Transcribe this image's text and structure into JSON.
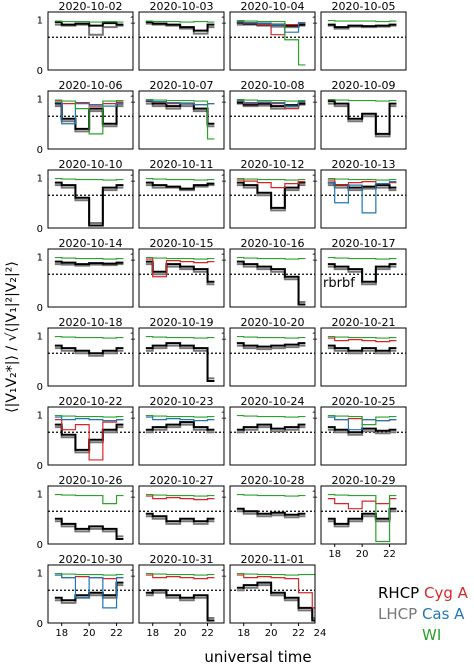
{
  "chart_data": {
    "type": "line",
    "ylabel": "⟨|V₁V₂*|⟩ / √⟨|V₁|²|V₂|²⟩",
    "xlabel": "universal time",
    "xlim": [
      17,
      23.2
    ],
    "ylim": [
      0,
      1.15
    ],
    "yticks": [
      "0",
      "1"
    ],
    "xticks": [
      "18",
      "20",
      "22"
    ],
    "reference_line": 0.65,
    "colors": {
      "black": "#000000",
      "gray": "#777777",
      "red": "#d62728",
      "blue": "#1f77b4",
      "green": "#2ca02c"
    },
    "legend": {
      "rhcp": "RHCP",
      "lhcp": "LHCP",
      "cyg": "Cyg A",
      "cas": "Cas A",
      "wi": "WI"
    },
    "annotation": "rbrbf",
    "panels": [
      {
        "date": "2020-10-02",
        "x": [
          17.5,
          18,
          19,
          20,
          21,
          22
        ],
        "black": [
          0.95,
          0.9,
          0.92,
          0.88,
          0.93,
          0.9
        ],
        "gray": [
          0.9,
          0.88,
          0.9,
          0.7,
          0.85,
          0.88
        ],
        "green": [
          0.97,
          0.96,
          0.96,
          0.95,
          0.96,
          0.95
        ]
      },
      {
        "date": "2020-10-03",
        "x": [
          17.5,
          18,
          19,
          20,
          21,
          22
        ],
        "black": [
          0.95,
          0.92,
          0.9,
          0.85,
          0.78,
          0.9
        ],
        "gray": [
          0.92,
          0.9,
          0.88,
          0.82,
          0.72,
          0.85
        ],
        "green": [
          0.97,
          0.96,
          0.96,
          0.95,
          0.96,
          0.95
        ]
      },
      {
        "date": "2020-10-04",
        "x": [
          17.5,
          18,
          19,
          20,
          21,
          22
        ],
        "black": [
          0.94,
          0.92,
          0.9,
          0.9,
          0.88,
          0.9
        ],
        "gray": [
          0.9,
          0.9,
          0.88,
          0.86,
          0.85,
          0.88
        ],
        "red": [
          0.95,
          0.93,
          0.9,
          0.7,
          0.9,
          0.93
        ],
        "blue": [
          0.96,
          0.94,
          0.93,
          0.9,
          0.75,
          0.94
        ],
        "green": [
          0.98,
          0.97,
          0.96,
          0.96,
          0.6,
          0.1
        ]
      },
      {
        "date": "2020-10-05",
        "x": [
          17.5,
          18,
          19,
          20,
          21,
          22
        ],
        "black": [
          0.9,
          0.85,
          0.88,
          0.87,
          0.88,
          0.9
        ],
        "gray": [
          0.88,
          0.82,
          0.86,
          0.85,
          0.86,
          0.88
        ],
        "green": [
          0.98,
          0.97,
          0.97,
          0.97,
          0.96,
          0.97
        ]
      },
      {
        "date": "2020-10-06",
        "x": [
          17.5,
          18,
          19,
          20,
          21,
          22
        ],
        "black": [
          0.9,
          0.6,
          0.4,
          0.8,
          0.5,
          0.9
        ],
        "gray": [
          0.85,
          0.55,
          0.35,
          0.75,
          0.45,
          0.85
        ],
        "red": [
          0.95,
          0.9,
          0.92,
          0.85,
          0.9,
          0.93
        ],
        "blue": [
          0.92,
          0.5,
          0.9,
          0.88,
          0.85,
          0.9
        ],
        "green": [
          0.97,
          0.95,
          0.8,
          0.3,
          0.95,
          0.96
        ]
      },
      {
        "date": "2020-10-07",
        "x": [
          17.5,
          18,
          19,
          20,
          21,
          22
        ],
        "black": [
          0.95,
          0.9,
          0.85,
          0.9,
          0.8,
          0.5
        ],
        "gray": [
          0.9,
          0.85,
          0.8,
          0.85,
          0.75,
          0.45
        ],
        "red": [
          0.95,
          0.93,
          0.9,
          0.9,
          0.88,
          0.9
        ],
        "blue": [
          0.96,
          0.94,
          0.92,
          0.9,
          0.88,
          0.9
        ],
        "green": [
          0.98,
          0.97,
          0.96,
          0.96,
          0.95,
          0.2
        ]
      },
      {
        "date": "2020-10-08",
        "x": [
          17.5,
          18,
          19,
          20,
          21,
          22
        ],
        "black": [
          0.92,
          0.88,
          0.9,
          0.85,
          0.87,
          0.9
        ],
        "gray": [
          0.9,
          0.85,
          0.86,
          0.8,
          0.84,
          0.88
        ],
        "red": [
          0.95,
          0.9,
          0.92,
          0.9,
          0.8,
          0.93
        ],
        "blue": [
          0.96,
          0.92,
          0.93,
          0.92,
          0.85,
          0.94
        ],
        "green": [
          0.98,
          0.97,
          0.96,
          0.96,
          0.95,
          0.96
        ]
      },
      {
        "date": "2020-10-09",
        "x": [
          17.5,
          18,
          19,
          20,
          21,
          22
        ],
        "black": [
          0.95,
          0.9,
          0.6,
          0.7,
          0.3,
          0.9
        ],
        "gray": [
          0.9,
          0.85,
          0.55,
          0.65,
          0.25,
          0.85
        ],
        "green": [
          0.98,
          0.97,
          0.96,
          0.96,
          0.95,
          0.96
        ]
      },
      {
        "date": "2020-10-10",
        "x": [
          17.5,
          18,
          19,
          20,
          21,
          22
        ],
        "black": [
          0.9,
          0.85,
          0.6,
          0.05,
          0.8,
          0.85
        ],
        "gray": [
          0.85,
          0.8,
          0.55,
          0.1,
          0.75,
          0.8
        ],
        "green": [
          0.98,
          0.97,
          0.96,
          0.96,
          0.95,
          0.96
        ]
      },
      {
        "date": "2020-10-11",
        "x": [
          17.5,
          18,
          19,
          20,
          21,
          22
        ],
        "black": [
          0.9,
          0.85,
          0.82,
          0.78,
          0.85,
          0.88
        ],
        "gray": [
          0.85,
          0.8,
          0.8,
          0.75,
          0.82,
          0.85
        ],
        "green": [
          0.98,
          0.97,
          0.96,
          0.96,
          0.95,
          0.96
        ]
      },
      {
        "date": "2020-10-12",
        "x": [
          17.5,
          18,
          19,
          20,
          21,
          22
        ],
        "black": [
          0.9,
          0.85,
          0.7,
          0.4,
          0.8,
          0.9
        ],
        "gray": [
          0.85,
          0.8,
          0.65,
          0.35,
          0.75,
          0.85
        ],
        "red": [
          0.95,
          0.93,
          0.9,
          0.8,
          0.88,
          0.92
        ],
        "green": [
          0.98,
          0.97,
          0.96,
          0.96,
          0.95,
          0.96
        ]
      },
      {
        "date": "2020-10-13",
        "x": [
          17.5,
          18,
          19,
          20,
          21,
          22
        ],
        "black": [
          0.9,
          0.85,
          0.8,
          0.82,
          0.85,
          0.8
        ],
        "gray": [
          0.85,
          0.8,
          0.75,
          0.78,
          0.8,
          0.75
        ],
        "red": [
          0.95,
          0.85,
          0.9,
          0.92,
          0.88,
          0.9
        ],
        "blue": [
          0.9,
          0.5,
          0.85,
          0.3,
          0.88,
          0.92
        ],
        "green": [
          0.98,
          0.97,
          0.96,
          0.96,
          0.95,
          0.96
        ]
      },
      {
        "date": "2020-10-14",
        "x": [
          17.5,
          18,
          19,
          20,
          21,
          22
        ],
        "black": [
          0.9,
          0.88,
          0.85,
          0.87,
          0.86,
          0.88
        ],
        "gray": [
          0.85,
          0.84,
          0.82,
          0.84,
          0.83,
          0.85
        ],
        "green": [
          0.98,
          0.97,
          0.96,
          0.96,
          0.95,
          0.96
        ]
      },
      {
        "date": "2020-10-15",
        "x": [
          17.5,
          18,
          19,
          20,
          21,
          22
        ],
        "black": [
          0.9,
          0.7,
          0.85,
          0.8,
          0.75,
          0.5
        ],
        "gray": [
          0.85,
          0.65,
          0.8,
          0.75,
          0.7,
          0.45
        ],
        "red": [
          0.95,
          0.6,
          0.92,
          0.9,
          0.88,
          0.9
        ],
        "green": [
          0.98,
          0.97,
          0.96,
          0.96,
          0.95,
          0.96
        ]
      },
      {
        "date": "2020-10-16",
        "x": [
          17.5,
          18,
          19,
          20,
          21,
          22
        ],
        "black": [
          0.9,
          0.85,
          0.8,
          0.75,
          0.6,
          0.05
        ],
        "gray": [
          0.85,
          0.8,
          0.75,
          0.7,
          0.55,
          0.1
        ],
        "green": [
          0.98,
          0.97,
          0.96,
          0.96,
          0.95,
          0.96
        ]
      },
      {
        "date": "2020-10-17",
        "x": [
          17.5,
          18,
          19,
          20,
          21,
          22
        ],
        "black": [
          0.85,
          0.8,
          0.75,
          0.5,
          0.8,
          0.85
        ],
        "gray": [
          0.8,
          0.75,
          0.7,
          0.45,
          0.75,
          0.8
        ],
        "green": [
          0.98,
          0.97,
          0.96,
          0.96,
          0.95,
          0.96
        ]
      },
      {
        "date": "2020-10-18",
        "x": [
          17.5,
          18,
          19,
          20,
          21,
          22
        ],
        "black": [
          0.8,
          0.75,
          0.7,
          0.65,
          0.7,
          0.75
        ],
        "gray": [
          0.75,
          0.7,
          0.65,
          0.6,
          0.65,
          0.7
        ],
        "green": [
          0.98,
          0.97,
          0.96,
          0.96,
          0.95,
          0.96
        ]
      },
      {
        "date": "2020-10-19",
        "x": [
          17.5,
          18,
          19,
          20,
          21,
          22
        ],
        "black": [
          0.75,
          0.8,
          0.85,
          0.8,
          0.75,
          0.1
        ],
        "gray": [
          0.7,
          0.75,
          0.8,
          0.75,
          0.7,
          0.15
        ],
        "green": [
          0.98,
          0.97,
          0.96,
          0.96,
          0.95,
          0.96
        ]
      },
      {
        "date": "2020-10-20",
        "x": [
          17.5,
          18,
          19,
          20,
          21,
          22
        ],
        "black": [
          0.85,
          0.8,
          0.78,
          0.8,
          0.82,
          0.85
        ],
        "gray": [
          0.8,
          0.75,
          0.73,
          0.75,
          0.77,
          0.8
        ],
        "green": [
          0.98,
          0.97,
          0.96,
          0.96,
          0.95,
          0.96
        ]
      },
      {
        "date": "2020-10-21",
        "x": [
          17.5,
          18,
          19,
          20,
          21,
          22
        ],
        "black": [
          0.8,
          0.75,
          0.7,
          0.75,
          0.7,
          0.75
        ],
        "gray": [
          0.75,
          0.7,
          0.65,
          0.7,
          0.65,
          0.7
        ],
        "red": [
          0.95,
          0.9,
          0.92,
          0.9,
          0.88,
          0.9
        ],
        "green": [
          0.98,
          0.97,
          0.96,
          0.96,
          0.95,
          0.96
        ]
      },
      {
        "date": "2020-10-22",
        "x": [
          17.5,
          18,
          19,
          20,
          21,
          22
        ],
        "black": [
          0.8,
          0.6,
          0.3,
          0.5,
          0.7,
          0.8
        ],
        "gray": [
          0.75,
          0.55,
          0.25,
          0.45,
          0.65,
          0.75
        ],
        "red": [
          0.9,
          0.7,
          0.8,
          0.1,
          0.85,
          0.9
        ],
        "blue": [
          0.95,
          0.9,
          0.92,
          0.9,
          0.88,
          0.9
        ],
        "green": [
          0.98,
          0.97,
          0.96,
          0.96,
          0.95,
          0.96
        ]
      },
      {
        "date": "2020-10-23",
        "x": [
          17.5,
          18,
          19,
          20,
          21,
          22
        ],
        "black": [
          0.7,
          0.75,
          0.8,
          0.85,
          0.75,
          0.7
        ],
        "gray": [
          0.65,
          0.7,
          0.75,
          0.8,
          0.7,
          0.65
        ],
        "blue": [
          0.95,
          0.9,
          0.92,
          0.9,
          0.88,
          0.9
        ],
        "green": [
          0.98,
          0.97,
          0.96,
          0.96,
          0.95,
          0.96
        ]
      },
      {
        "date": "2020-10-24",
        "x": [
          17.5,
          18,
          19,
          20,
          21,
          22
        ],
        "black": [
          0.7,
          0.75,
          0.8,
          0.72,
          0.75,
          0.8
        ],
        "gray": [
          0.65,
          0.7,
          0.75,
          0.67,
          0.7,
          0.75
        ],
        "green": [
          0.98,
          0.97,
          0.96,
          0.96,
          0.95,
          0.96
        ]
      },
      {
        "date": "2020-10-25",
        "x": [
          17.5,
          18,
          19,
          20,
          21,
          22
        ],
        "black": [
          0.75,
          0.7,
          0.65,
          0.72,
          0.68,
          0.7
        ],
        "gray": [
          0.7,
          0.65,
          0.6,
          0.67,
          0.63,
          0.65
        ],
        "red": [
          0.95,
          0.9,
          0.92,
          0.9,
          0.88,
          0.9
        ],
        "blue": [
          0.95,
          0.9,
          0.7,
          0.9,
          0.88,
          0.9
        ],
        "green": [
          0.98,
          0.97,
          0.96,
          0.8,
          0.95,
          0.96
        ]
      },
      {
        "date": "2020-10-26",
        "x": [
          17.5,
          18,
          19,
          20,
          21,
          22
        ],
        "black": [
          0.5,
          0.4,
          0.3,
          0.35,
          0.3,
          0.1
        ],
        "gray": [
          0.45,
          0.35,
          0.25,
          0.3,
          0.25,
          0.15
        ],
        "green": [
          0.98,
          0.97,
          0.96,
          0.96,
          0.8,
          0.96
        ]
      },
      {
        "date": "2020-10-27",
        "x": [
          17.5,
          18,
          19,
          20,
          21,
          22
        ],
        "black": [
          0.6,
          0.55,
          0.45,
          0.5,
          0.45,
          0.5
        ],
        "gray": [
          0.55,
          0.5,
          0.4,
          0.45,
          0.4,
          0.45
        ],
        "red": [
          0.95,
          0.9,
          0.92,
          0.9,
          0.88,
          0.9
        ],
        "green": [
          0.98,
          0.97,
          0.96,
          0.96,
          0.95,
          0.96
        ]
      },
      {
        "date": "2020-10-28",
        "x": [
          17.5,
          18,
          19,
          20,
          21,
          22
        ],
        "black": [
          0.7,
          0.65,
          0.6,
          0.62,
          0.58,
          0.6
        ],
        "gray": [
          0.65,
          0.6,
          0.55,
          0.57,
          0.53,
          0.55
        ],
        "green": [
          0.98,
          0.97,
          0.96,
          0.96,
          0.95,
          0.96
        ]
      },
      {
        "date": "2020-10-29",
        "x": [
          17.5,
          18,
          19,
          20,
          21,
          22
        ],
        "black": [
          0.5,
          0.4,
          0.5,
          0.6,
          0.5,
          0.7
        ],
        "gray": [
          0.45,
          0.35,
          0.45,
          0.55,
          0.45,
          0.65
        ],
        "red": [
          0.9,
          0.8,
          0.7,
          0.85,
          0.8,
          0.9
        ],
        "green": [
          0.98,
          0.97,
          0.96,
          0.96,
          0.05,
          0.96
        ]
      },
      {
        "date": "2020-10-30",
        "x": [
          17.5,
          18,
          19,
          20,
          21,
          22
        ],
        "black": [
          0.5,
          0.45,
          0.55,
          0.6,
          0.55,
          0.8
        ],
        "gray": [
          0.45,
          0.4,
          0.5,
          0.55,
          0.5,
          0.75
        ],
        "red": [
          0.95,
          0.9,
          0.92,
          0.9,
          0.88,
          0.9
        ],
        "blue": [
          0.95,
          0.9,
          0.5,
          0.9,
          0.3,
          0.9
        ],
        "green": [
          0.98,
          0.97,
          0.96,
          0.96,
          0.95,
          0.96
        ]
      },
      {
        "date": "2020-10-31",
        "x": [
          17.5,
          18,
          19,
          20,
          21,
          22
        ],
        "black": [
          0.6,
          0.65,
          0.55,
          0.5,
          0.55,
          0.05
        ],
        "gray": [
          0.55,
          0.6,
          0.5,
          0.45,
          0.5,
          0.1
        ],
        "red": [
          0.95,
          0.9,
          0.92,
          0.9,
          0.88,
          0.9
        ],
        "green": [
          0.98,
          0.97,
          0.96,
          0.96,
          0.95,
          0.96
        ]
      },
      {
        "date": "2020-11-01",
        "x": [
          17.5,
          18,
          19,
          20,
          21,
          22,
          23
        ],
        "black": [
          0.7,
          0.75,
          0.8,
          0.6,
          0.5,
          0.3,
          0.05
        ],
        "gray": [
          0.65,
          0.7,
          0.75,
          0.55,
          0.45,
          0.25,
          0.1
        ],
        "red": [
          0.95,
          0.9,
          0.92,
          0.9,
          0.88,
          0.6,
          0.3
        ],
        "green": [
          0.98,
          0.97,
          0.96,
          0.96,
          0.95,
          0.96,
          0.96
        ]
      }
    ]
  }
}
